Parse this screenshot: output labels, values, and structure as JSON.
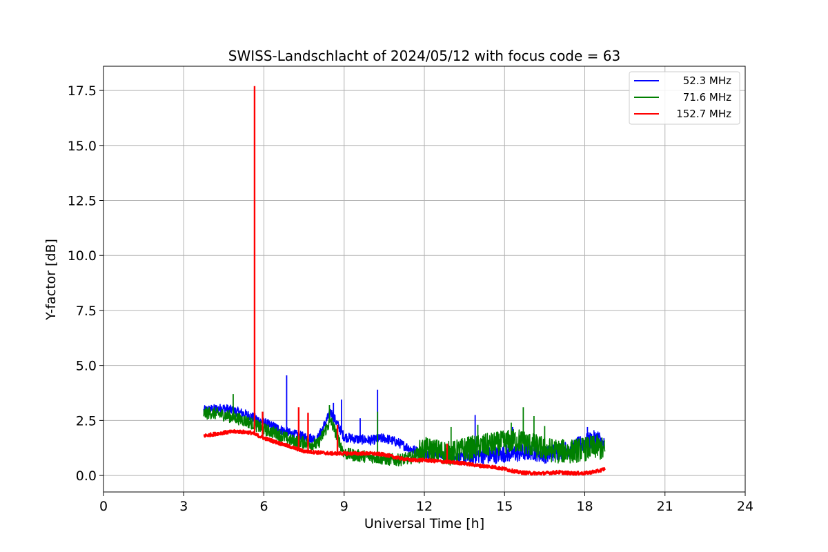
{
  "chart_data": {
    "type": "line",
    "title": "SWISS-Landschlacht of 2024/05/12 with focus code = 63",
    "xlabel": "Universal Time [h]",
    "ylabel": "Y-factor [dB]",
    "xlim": [
      0,
      24
    ],
    "ylim": [
      -0.75,
      18.6
    ],
    "xticks": [
      0,
      3,
      6,
      9,
      12,
      15,
      18,
      21,
      24
    ],
    "xtick_labels": [
      "0",
      "3",
      "6",
      "9",
      "12",
      "15",
      "18",
      "21",
      "24"
    ],
    "yticks": [
      0,
      2.5,
      5,
      7.5,
      10,
      12.5,
      15,
      17.5
    ],
    "ytick_labels": [
      "0.0",
      "2.5",
      "5.0",
      "7.5",
      "10.0",
      "12.5",
      "15.0",
      "17.5"
    ],
    "grid": true,
    "legend_position": "top-right",
    "series": [
      {
        "name": "52.3 MHz",
        "legend_label": "  52.3 MHz",
        "color": "#0000ff",
        "x": [
          3.75,
          4.0,
          4.5,
          5.0,
          5.5,
          6.0,
          6.5,
          7.0,
          7.5,
          8.0,
          8.5,
          9.0,
          9.5,
          10.0,
          10.5,
          11.0,
          11.5,
          12.0,
          12.5,
          13.0,
          13.5,
          14.0,
          14.5,
          15.0,
          15.5,
          16.0,
          16.5,
          17.0,
          17.5,
          18.0,
          18.5,
          18.75
        ],
        "y": [
          2.95,
          3.0,
          3.05,
          2.9,
          2.7,
          2.4,
          2.15,
          1.9,
          1.75,
          1.65,
          2.9,
          1.75,
          1.65,
          1.6,
          1.7,
          1.5,
          1.2,
          1.0,
          0.95,
          0.85,
          0.8,
          0.95,
          0.9,
          1.0,
          1.0,
          1.1,
          0.95,
          1.1,
          1.2,
          1.5,
          1.7,
          1.3
        ],
        "spikes": [
          {
            "x": 6.85,
            "y": 4.55
          },
          {
            "x": 8.6,
            "y": 3.3
          },
          {
            "x": 8.9,
            "y": 3.45
          },
          {
            "x": 9.6,
            "y": 2.6
          },
          {
            "x": 10.25,
            "y": 3.9
          },
          {
            "x": 13.9,
            "y": 2.75
          },
          {
            "x": 15.3,
            "y": 2.2
          },
          {
            "x": 18.1,
            "y": 2.2
          }
        ]
      },
      {
        "name": "71.6 MHz",
        "legend_label": "  71.6 MHz",
        "color": "#008000",
        "x": [
          3.75,
          4.0,
          4.5,
          5.0,
          5.5,
          6.0,
          6.5,
          7.0,
          7.5,
          8.0,
          8.5,
          9.0,
          9.5,
          10.0,
          10.5,
          11.0,
          11.5,
          12.0,
          12.5,
          13.0,
          13.5,
          14.0,
          14.5,
          15.0,
          15.5,
          16.0,
          16.5,
          17.0,
          17.5,
          18.0,
          18.5,
          18.75
        ],
        "y": [
          2.8,
          2.85,
          2.75,
          2.6,
          2.4,
          2.1,
          1.9,
          1.6,
          1.5,
          1.4,
          2.5,
          1.0,
          0.9,
          0.85,
          0.75,
          0.7,
          0.8,
          1.2,
          1.1,
          1.0,
          1.2,
          1.3,
          1.4,
          1.5,
          1.6,
          1.4,
          1.2,
          1.1,
          1.1,
          1.2,
          1.3,
          1.1
        ],
        "spikes": [
          {
            "x": 4.85,
            "y": 3.7
          },
          {
            "x": 8.45,
            "y": 3.2
          },
          {
            "x": 10.25,
            "y": 2.9
          },
          {
            "x": 13.0,
            "y": 2.2
          },
          {
            "x": 14.0,
            "y": 2.3
          },
          {
            "x": 15.25,
            "y": 2.4
          },
          {
            "x": 15.7,
            "y": 3.1
          },
          {
            "x": 16.1,
            "y": 2.7
          },
          {
            "x": 16.5,
            "y": 2.25
          }
        ]
      },
      {
        "name": "152.7 MHz",
        "legend_label": "152.7 MHz",
        "color": "#ff0000",
        "x": [
          3.75,
          4.0,
          4.5,
          5.0,
          5.5,
          6.0,
          6.5,
          7.0,
          7.5,
          8.0,
          8.5,
          9.0,
          9.5,
          10.0,
          10.5,
          11.0,
          11.5,
          12.0,
          12.5,
          13.0,
          13.5,
          14.0,
          14.5,
          15.0,
          15.5,
          16.0,
          16.5,
          17.0,
          17.5,
          18.0,
          18.5,
          18.75
        ],
        "y": [
          1.8,
          1.85,
          1.95,
          2.0,
          1.95,
          1.7,
          1.5,
          1.3,
          1.1,
          1.05,
          1.0,
          1.0,
          1.0,
          1.0,
          0.95,
          0.8,
          0.7,
          0.7,
          0.65,
          0.6,
          0.55,
          0.45,
          0.4,
          0.3,
          0.15,
          0.1,
          0.1,
          0.15,
          0.1,
          0.1,
          0.2,
          0.3
        ],
        "spikes": [
          {
            "x": 5.65,
            "y": 17.7
          },
          {
            "x": 5.95,
            "y": 2.9
          },
          {
            "x": 7.3,
            "y": 3.1
          },
          {
            "x": 7.65,
            "y": 2.85
          },
          {
            "x": 8.75,
            "y": 2.3
          },
          {
            "x": 12.85,
            "y": 1.45
          }
        ]
      }
    ]
  }
}
